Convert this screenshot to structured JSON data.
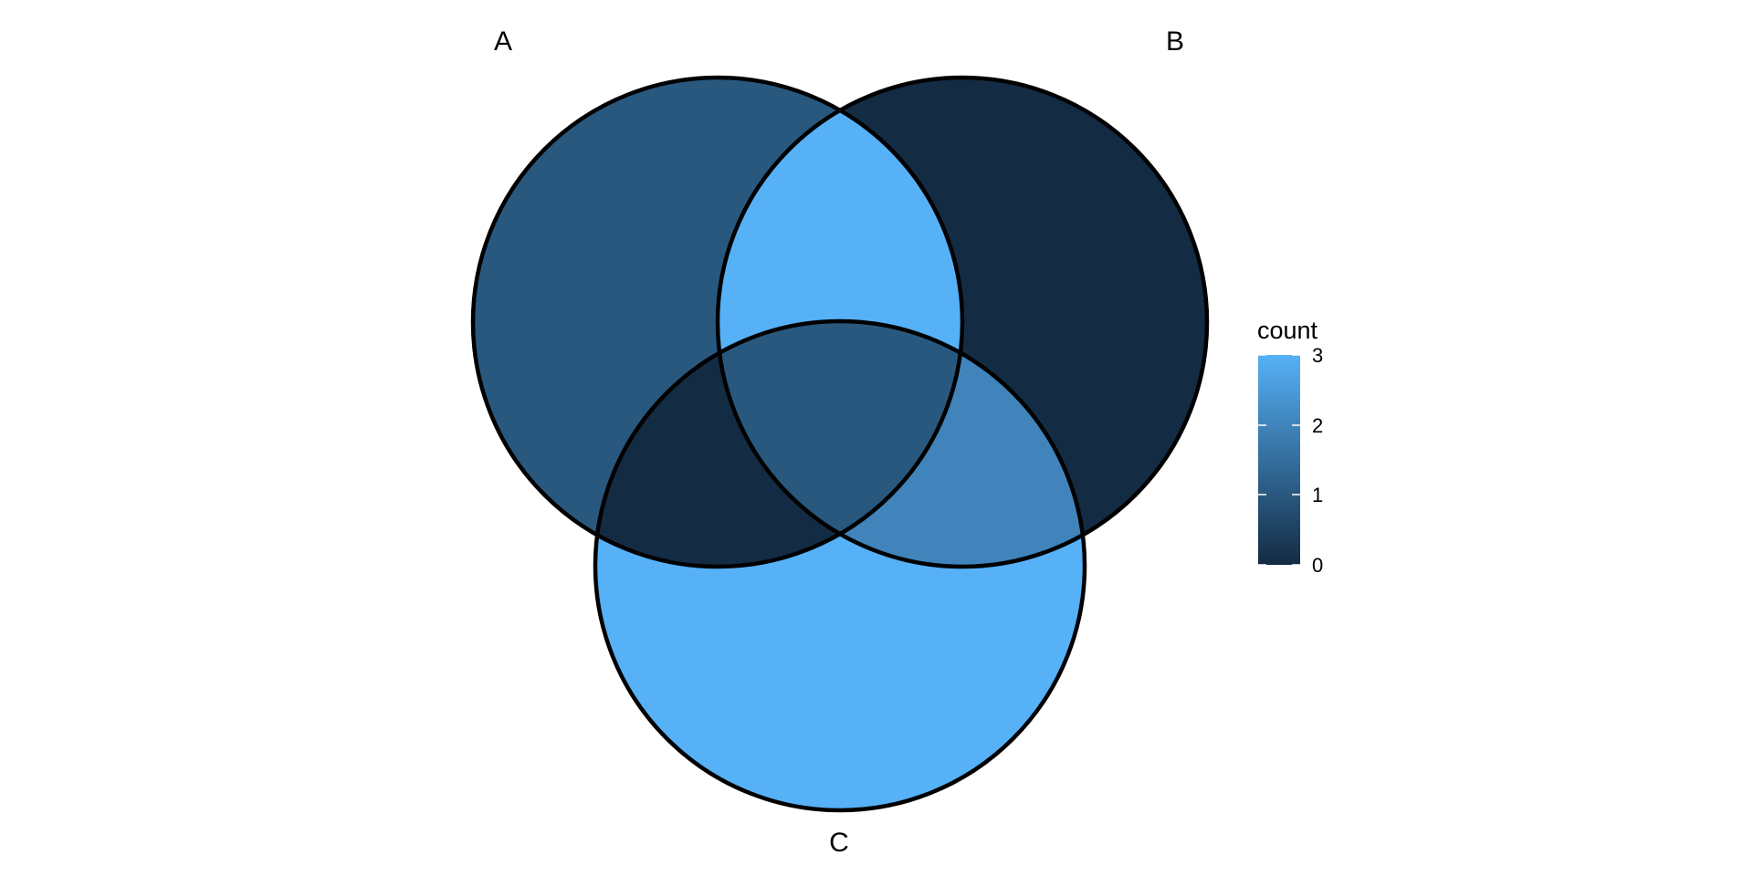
{
  "sets": [
    {
      "id": "A",
      "label": "A",
      "count": 1
    },
    {
      "id": "B",
      "label": "B",
      "count": 0
    },
    {
      "id": "C",
      "label": "C",
      "count": 3
    }
  ],
  "intersections": [
    {
      "sets": [
        "A",
        "B"
      ],
      "count": 3
    },
    {
      "sets": [
        "A",
        "C"
      ],
      "count": 0
    },
    {
      "sets": [
        "B",
        "C"
      ],
      "count": 2
    },
    {
      "sets": [
        "A",
        "B",
        "C"
      ],
      "count": 1
    }
  ],
  "legend": {
    "title": "count",
    "ticks": [
      "0",
      "1",
      "2",
      "3"
    ],
    "min": 0,
    "max": 3,
    "color_low": "#132B43",
    "color_high": "#56B1F7"
  }
}
